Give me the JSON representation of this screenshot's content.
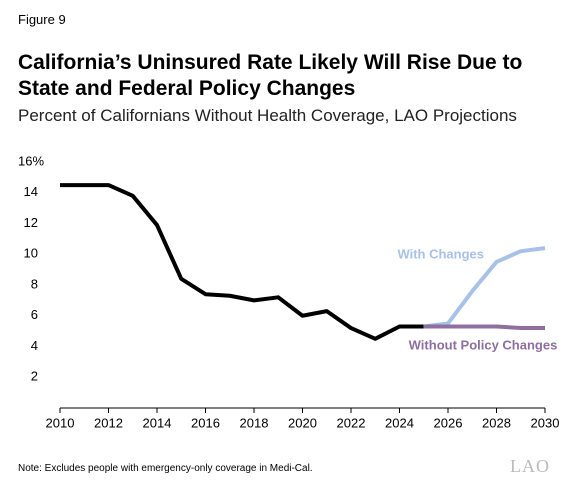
{
  "figure_label": "Figure 9",
  "chart_data": {
    "type": "line",
    "title": "California’s Uninsured Rate Likely Will Rise Due to State and Federal Policy Changes",
    "subtitle": "Percent of Californians Without Health Coverage, LAO Projections",
    "x": [
      2010,
      2011,
      2012,
      2013,
      2014,
      2015,
      2016,
      2017,
      2018,
      2019,
      2020,
      2021,
      2022,
      2023,
      2024,
      2025,
      2026,
      2027,
      2028,
      2029,
      2030
    ],
    "series": [
      {
        "color": "#000000",
        "values": [
          14.5,
          14.5,
          14.5,
          13.8,
          11.9,
          8.4,
          7.4,
          7.3,
          7.0,
          7.2,
          6.0,
          6.3,
          5.2,
          4.5,
          5.3,
          5.3,
          null,
          null,
          null,
          null,
          null
        ]
      },
      {
        "name": "With Changes",
        "color": "#a7c1e8",
        "values": [
          null,
          null,
          null,
          null,
          null,
          null,
          null,
          null,
          null,
          null,
          null,
          null,
          null,
          null,
          null,
          5.3,
          5.5,
          7.6,
          9.5,
          10.2,
          10.4
        ]
      },
      {
        "name": "Without Policy Changes",
        "color": "#8e6f9f",
        "values": [
          null,
          null,
          null,
          null,
          null,
          null,
          null,
          null,
          null,
          null,
          null,
          null,
          null,
          null,
          null,
          5.3,
          5.3,
          5.3,
          5.3,
          5.2,
          5.2
        ]
      }
    ],
    "xlim": [
      2010,
      2030
    ],
    "xticks": [
      2010,
      2012,
      2014,
      2016,
      2018,
      2020,
      2022,
      2024,
      2026,
      2028,
      2030
    ],
    "ylim": [
      0,
      16
    ],
    "yticks": [
      2,
      4,
      6,
      8,
      10,
      12,
      14,
      {
        "value": 16,
        "label": "16%"
      }
    ],
    "grid": false
  },
  "note": "Note: Excludes people with emergency-only coverage in Medi-Cal.",
  "logo": "LAO"
}
